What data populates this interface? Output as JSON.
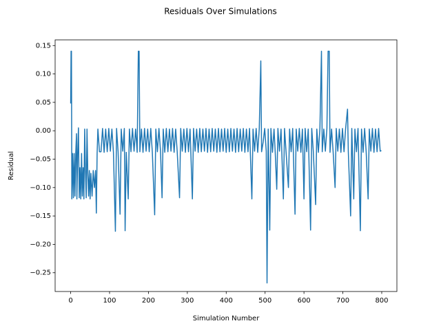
{
  "chart_data": {
    "type": "line",
    "title": "Residuals Over Simulations",
    "xlabel": "Simulation Number",
    "ylabel": "Residual",
    "color": "#1f77b4",
    "x": [
      0,
      1,
      2,
      3,
      5,
      7,
      9,
      11,
      13,
      15,
      16,
      18,
      20,
      22,
      24,
      26,
      28,
      30,
      32,
      34,
      36,
      38,
      40,
      42,
      44,
      46,
      48,
      50,
      52,
      55,
      58,
      61,
      64,
      66,
      68,
      70,
      74,
      78,
      82,
      86,
      90,
      94,
      98,
      102,
      106,
      110,
      115,
      118,
      122,
      127,
      130,
      134,
      138,
      140,
      143,
      148,
      151,
      155,
      159,
      163,
      167,
      171,
      174,
      176,
      178,
      182,
      186,
      190,
      194,
      198,
      202,
      206,
      210,
      216,
      219,
      223,
      227,
      231,
      235,
      238,
      242,
      246,
      250,
      254,
      258,
      262,
      266,
      270,
      274,
      280,
      283,
      287,
      291,
      295,
      299,
      303,
      307,
      313,
      316,
      320,
      324,
      328,
      332,
      336,
      340,
      344,
      348,
      352,
      356,
      360,
      364,
      368,
      372,
      376,
      380,
      384,
      388,
      392,
      396,
      400,
      404,
      408,
      412,
      416,
      420,
      424,
      428,
      432,
      436,
      440,
      444,
      448,
      452,
      456,
      460,
      466,
      469,
      473,
      477,
      481,
      485,
      489,
      491,
      495,
      499,
      503,
      505,
      508,
      512,
      515,
      519,
      523,
      526,
      530,
      533,
      537,
      541,
      547,
      550,
      554,
      560,
      563,
      567,
      571,
      577,
      580,
      584,
      588,
      592,
      596,
      600,
      603,
      607,
      611,
      617,
      620,
      624,
      630,
      633,
      637,
      641,
      645,
      647,
      651,
      655,
      659,
      662,
      665,
      667,
      671,
      675,
      680,
      683,
      687,
      691,
      695,
      699,
      703,
      707,
      712,
      714,
      720,
      723,
      728,
      731,
      735,
      739,
      745,
      748,
      752,
      756,
      760,
      765,
      768,
      772,
      776,
      780,
      784,
      788,
      792,
      796,
      799
    ],
    "values": [
      0.048,
      0.14,
      0.14,
      -0.12,
      -0.04,
      -0.118,
      -0.04,
      -0.115,
      -0.04,
      -0.005,
      -0.12,
      -0.04,
      0.005,
      -0.118,
      -0.065,
      -0.12,
      -0.04,
      -0.115,
      -0.065,
      -0.12,
      0.003,
      -0.07,
      -0.118,
      0.003,
      -0.075,
      -0.115,
      -0.07,
      -0.12,
      -0.075,
      -0.115,
      -0.07,
      -0.1,
      -0.07,
      -0.145,
      -0.04,
      0.003,
      -0.037,
      -0.037,
      0.004,
      -0.038,
      0.003,
      -0.037,
      0.004,
      -0.036,
      0.003,
      -0.038,
      -0.177,
      0.004,
      -0.037,
      -0.147,
      0.003,
      -0.036,
      0.004,
      -0.176,
      -0.038,
      -0.12,
      0.003,
      -0.037,
      0.004,
      -0.036,
      0.003,
      -0.038,
      0.14,
      0.14,
      -0.037,
      0.003,
      -0.038,
      0.004,
      -0.036,
      0.003,
      -0.037,
      0.004,
      -0.038,
      -0.148,
      0.003,
      -0.037,
      0.004,
      -0.036,
      -0.118,
      0.003,
      -0.038,
      0.004,
      -0.037,
      0.003,
      -0.036,
      0.004,
      -0.038,
      0.003,
      -0.037,
      -0.118,
      0.004,
      -0.036,
      0.003,
      -0.038,
      0.004,
      -0.037,
      0.003,
      -0.12,
      0.004,
      -0.036,
      0.003,
      -0.038,
      0.004,
      -0.037,
      0.003,
      -0.036,
      0.004,
      -0.038,
      0.003,
      -0.037,
      0.004,
      -0.036,
      0.003,
      -0.038,
      0.004,
      -0.037,
      0.003,
      -0.036,
      0.004,
      -0.038,
      0.003,
      -0.037,
      0.004,
      -0.036,
      0.003,
      -0.038,
      0.004,
      -0.037,
      0.003,
      -0.036,
      0.004,
      -0.038,
      0.003,
      -0.037,
      0.004,
      -0.12,
      0.003,
      -0.036,
      0.004,
      -0.038,
      0.003,
      0.123,
      -0.037,
      -0.02,
      0.004,
      -0.036,
      -0.268,
      0.003,
      -0.175,
      0.004,
      -0.038,
      0.003,
      -0.037,
      -0.103,
      0.004,
      -0.036,
      0.003,
      -0.12,
      0.004,
      -0.038,
      -0.1,
      0.003,
      -0.037,
      0.004,
      -0.147,
      0.003,
      -0.036,
      0.004,
      -0.038,
      0.003,
      -0.12,
      0.004,
      -0.037,
      0.003,
      -0.175,
      0.004,
      -0.036,
      -0.13,
      0.003,
      -0.038,
      0.004,
      0.14,
      -0.037,
      0.003,
      -0.036,
      0.004,
      0.14,
      0.14,
      -0.038,
      0.003,
      -0.037,
      -0.1,
      0.004,
      -0.036,
      0.003,
      -0.038,
      0.004,
      -0.037,
      0.003,
      0.038,
      -0.036,
      -0.15,
      0.004,
      -0.12,
      0.003,
      -0.037,
      0.004,
      -0.176,
      0.003,
      -0.038,
      0.004,
      -0.037,
      -0.12,
      0.003,
      -0.036,
      0.004,
      -0.038,
      0.003,
      -0.037,
      0.004,
      -0.036,
      -0.035
    ],
    "xlim": [
      -40,
      839
    ],
    "xticks": [
      0,
      100,
      200,
      300,
      400,
      500,
      600,
      700,
      800
    ],
    "ylim": [
      -0.283,
      0.16
    ],
    "yticks": [
      0.15,
      {
        "value": 0.1,
        "label": "0.10"
      },
      {
        "value": 0.05,
        "label": "0.05"
      },
      {
        "value": 0,
        "label": "0.00"
      },
      {
        "value": -0.05,
        "label": "−0.05"
      },
      {
        "value": -0.1,
        "label": "−0.10"
      },
      {
        "value": -0.15,
        "label": "−0.15"
      },
      {
        "value": -0.2,
        "label": "−0.20"
      },
      {
        "value": -0.25,
        "label": "−0.25"
      }
    ]
  }
}
